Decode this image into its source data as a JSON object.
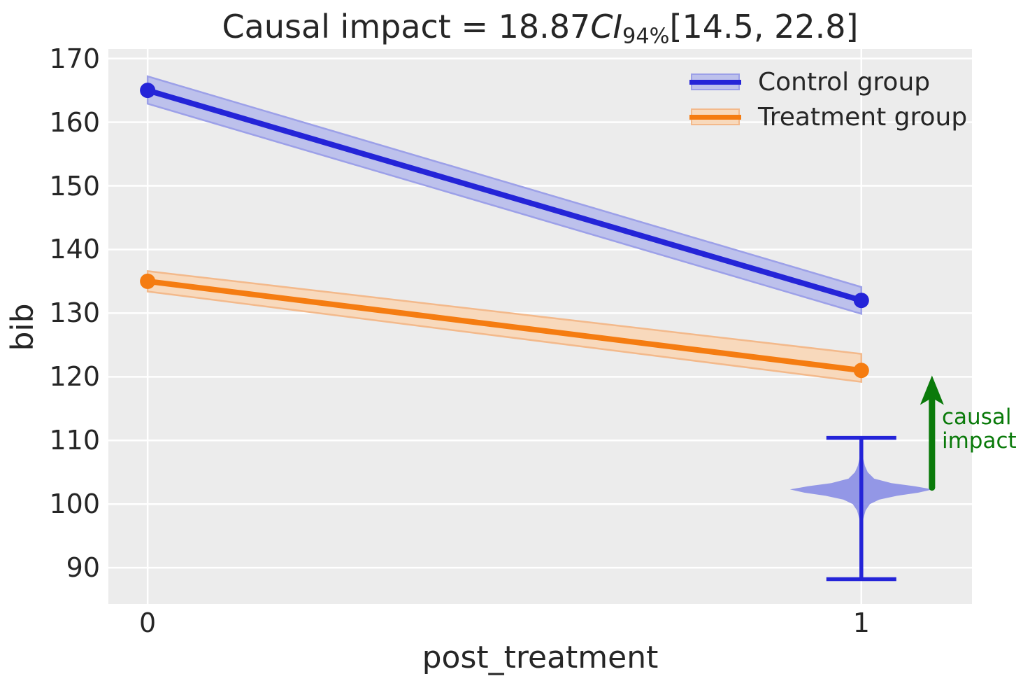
{
  "title": {
    "prefix": "Causal impact = 18.87",
    "ci_label": "CI",
    "ci_sub": "94%",
    "interval": "[14.5, 22.8]"
  },
  "colors": {
    "plot_bg": "#ececec",
    "grid": "#ffffff",
    "text": "#262626",
    "control": "#2424d8",
    "control_band": "#bdc1ec",
    "control_band_edge": "#9ca0e8",
    "treatment": "#f57c11",
    "treatment_band": "#f8d9bc",
    "treatment_band_edge": "#f3b98b",
    "violin_fill": "#8a8ee6",
    "violin_line": "#2424d8",
    "arrow_green": "#0a7a0a"
  },
  "chart_data": {
    "type": "line",
    "title": "Causal impact = 18.87 CI 94% [14.5, 22.8]",
    "xlabel": "post_treatment",
    "ylabel": "bib",
    "xlim": [
      -0.055,
      1.155
    ],
    "ylim": [
      84.3,
      171.5
    ],
    "xticks": [
      0,
      1
    ],
    "yticks": [
      90,
      100,
      110,
      120,
      130,
      140,
      150,
      160,
      170
    ],
    "grid": true,
    "legend_position": "upper right",
    "series": [
      {
        "name": "Control group",
        "key": "control",
        "x": [
          0,
          1
        ],
        "values": [
          165,
          132
        ],
        "band_upper": [
          167.2,
          134.1
        ],
        "band_lower": [
          162.9,
          129.9
        ],
        "color": "#2424d8",
        "band_color": "#bdc1ec",
        "band_edge_color": "#9ca0e8"
      },
      {
        "name": "Treatment group",
        "key": "treatment",
        "x": [
          0,
          1
        ],
        "values": [
          135,
          121
        ],
        "band_upper": [
          136.6,
          123.6
        ],
        "band_lower": [
          133.4,
          119.2
        ],
        "color": "#f57c11",
        "band_color": "#f8d9bc",
        "band_edge_color": "#f3b98b"
      }
    ],
    "violin": {
      "x": 1,
      "whisker_low": 88.2,
      "whisker_high": 110.4,
      "cap_halfwidth": 0.049,
      "max_halfwidth": 0.1,
      "mode": 102.3,
      "fill": "#8a8ee6",
      "line_color": "#2424d8",
      "profile": [
        [
          107.4,
          0.02
        ],
        [
          106.0,
          0.05
        ],
        [
          105.0,
          0.09
        ],
        [
          104.0,
          0.18
        ],
        [
          103.3,
          0.42
        ],
        [
          102.8,
          0.75
        ],
        [
          102.3,
          1.0
        ],
        [
          101.8,
          0.8
        ],
        [
          101.3,
          0.5
        ],
        [
          100.7,
          0.25
        ],
        [
          100.0,
          0.12
        ],
        [
          99.0,
          0.06
        ],
        [
          97.8,
          0.03
        ],
        [
          97.0,
          0.015
        ]
      ]
    },
    "annotation": {
      "label_line1": "causal",
      "label_line2": "impact",
      "arrow_x": 1.099,
      "arrow_from": 102.6,
      "arrow_to": 120.2,
      "color": "#0a7a0a"
    }
  },
  "legend": {
    "items": [
      {
        "label": "Control group",
        "series": "control"
      },
      {
        "label": "Treatment group",
        "series": "treatment"
      }
    ]
  }
}
